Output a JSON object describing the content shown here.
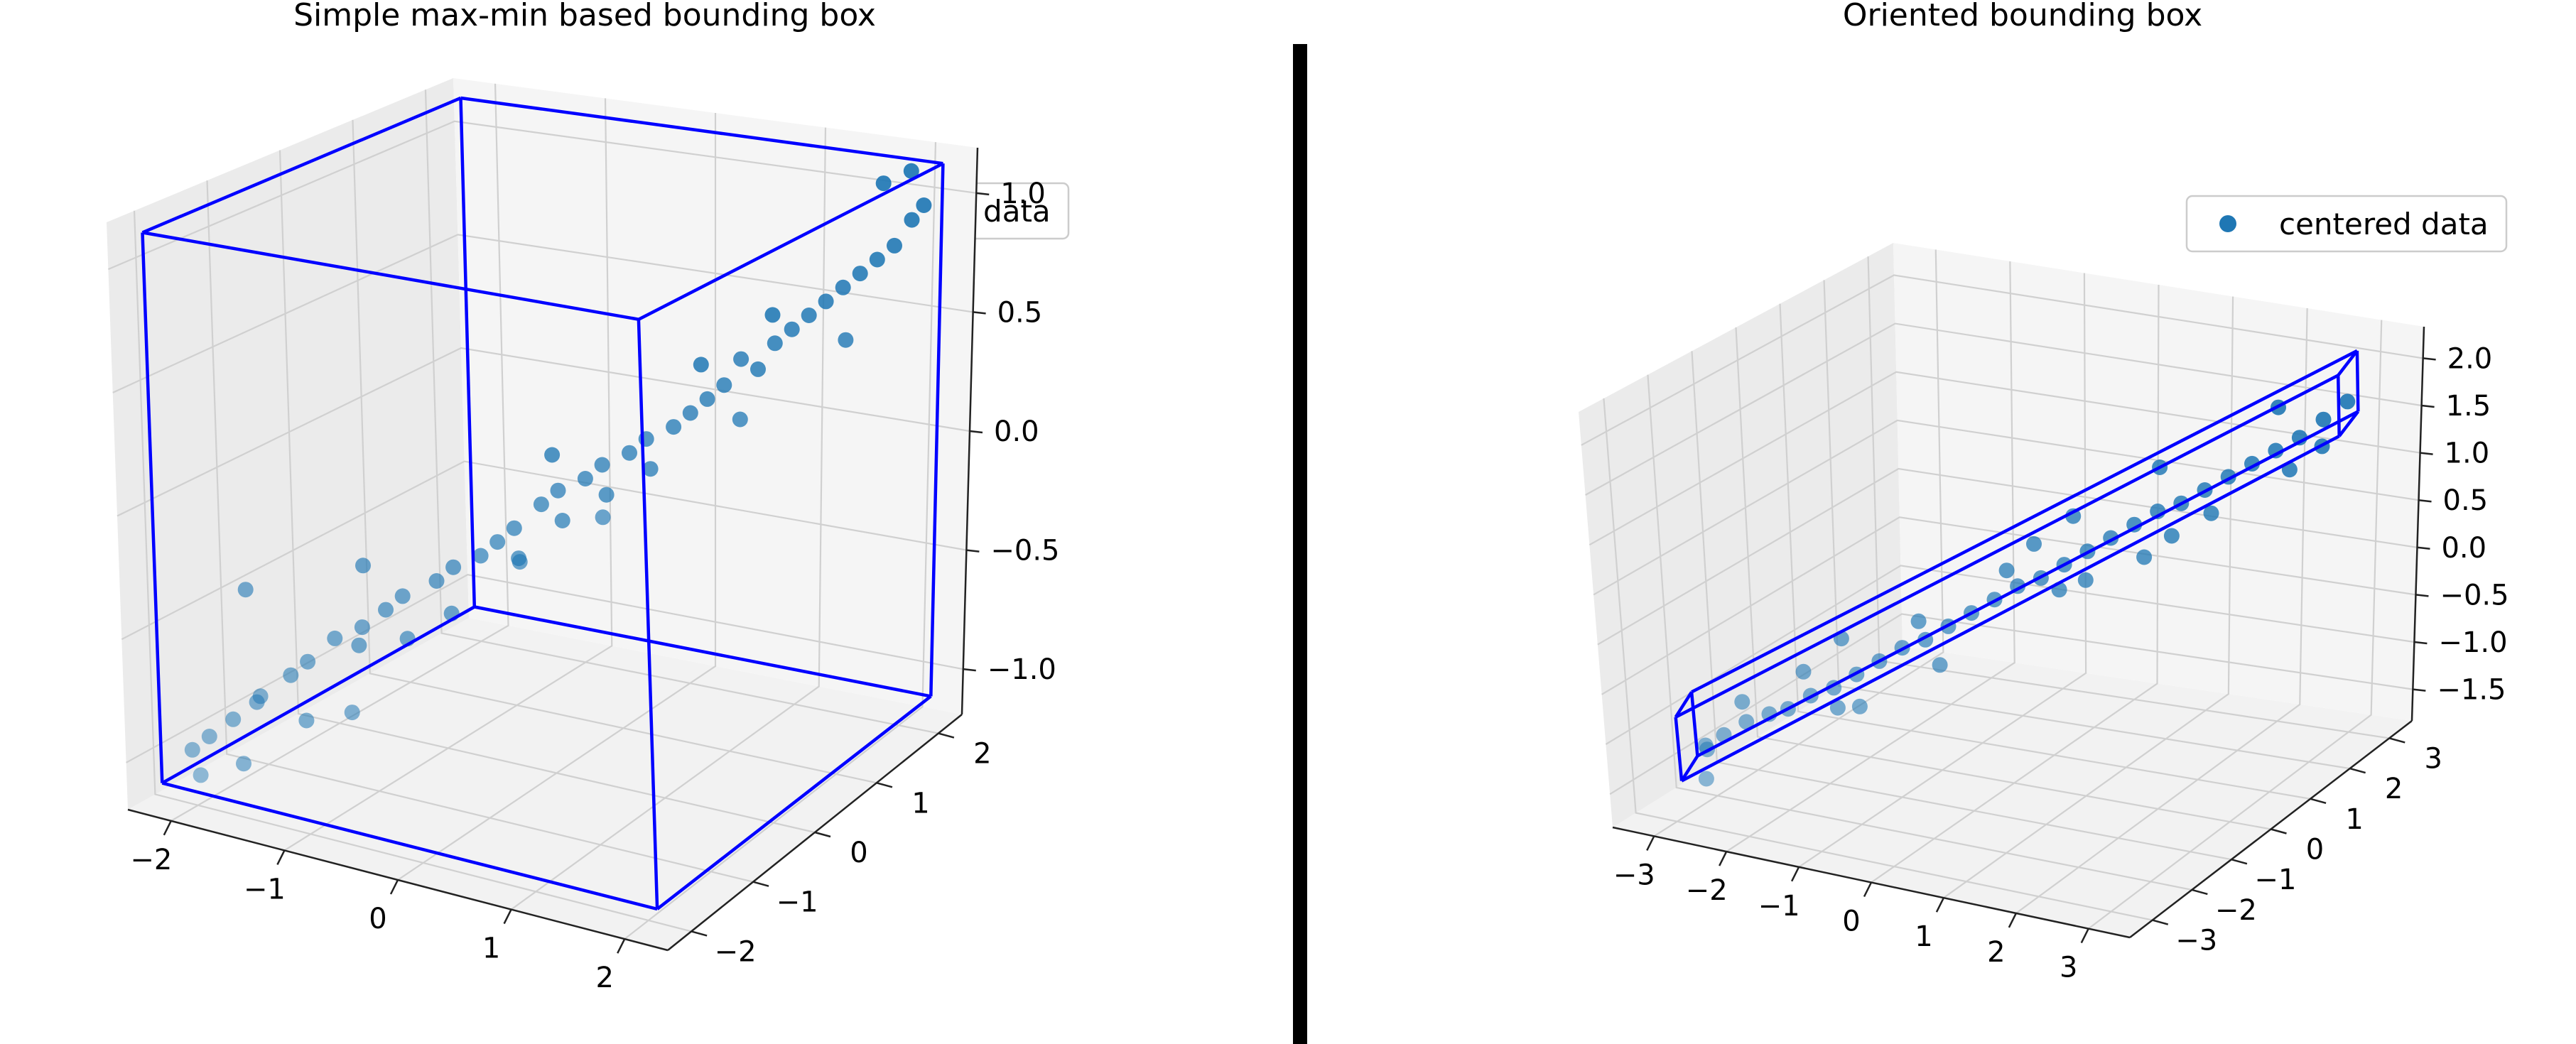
{
  "chart_data": [
    {
      "type": "scatter",
      "title": "Simple max-min based bounding box",
      "projection": "3d",
      "legend": {
        "label": "centered data",
        "position": "top-right"
      },
      "xlim": [
        -2.5,
        2.5
      ],
      "ylim": [
        -2.5,
        2.5
      ],
      "zlim": [
        -1.2,
        1.2
      ],
      "x_ticks": [
        "−2",
        "−1",
        "0",
        "1",
        "2"
      ],
      "y_ticks": [
        "−2",
        "−1",
        "0",
        "1",
        "2"
      ],
      "z_ticks": [
        "−1.0",
        "−0.5",
        "0.0",
        "0.5",
        "1.0"
      ],
      "marker_color": "#1f77b4",
      "box_color": "#0000ff",
      "grid": true,
      "box": {
        "x": [
          -2.3,
          2.3
        ],
        "y": [
          -2.3,
          2.3
        ],
        "z": [
          -1.1,
          1.15
        ]
      },
      "series": [
        {
          "name": "centered data",
          "points": [
            [
              -2.2,
              -2.0,
              -1.0
            ],
            [
              -2.1,
              -1.9,
              -0.95
            ],
            [
              -2.0,
              -1.7,
              -0.9
            ],
            [
              -1.9,
              -1.5,
              -0.85
            ],
            [
              -1.85,
              -1.8,
              -1.05
            ],
            [
              -1.8,
              -1.6,
              -0.8
            ],
            [
              -1.7,
              -1.3,
              -0.75
            ],
            [
              -1.6,
              -1.2,
              -0.7
            ],
            [
              -1.5,
              -1.4,
              -0.9
            ],
            [
              -1.4,
              -1.1,
              -0.6
            ],
            [
              -1.3,
              -0.9,
              -0.65
            ],
            [
              -1.2,
              -1.0,
              -0.55
            ],
            [
              -1.1,
              -0.8,
              -0.5
            ],
            [
              -1.0,
              -0.7,
              -0.45
            ],
            [
              -0.9,
              -0.8,
              -0.6
            ],
            [
              -0.8,
              -0.5,
              -0.4
            ],
            [
              -0.7,
              -0.4,
              -0.35
            ],
            [
              -0.6,
              -0.6,
              -0.5
            ],
            [
              -0.5,
              -0.3,
              -0.3
            ],
            [
              -0.4,
              -0.2,
              -0.25
            ],
            [
              -0.3,
              -0.1,
              -0.2
            ],
            [
              -0.2,
              -0.2,
              -0.3
            ],
            [
              -0.1,
              0.0,
              -0.1
            ],
            [
              0.0,
              0.1,
              -0.05
            ],
            [
              0.1,
              0.0,
              -0.15
            ],
            [
              0.2,
              0.2,
              0.0
            ],
            [
              0.3,
              0.3,
              0.05
            ],
            [
              0.4,
              0.2,
              -0.05
            ],
            [
              0.5,
              0.4,
              0.1
            ],
            [
              0.6,
              0.5,
              0.15
            ],
            [
              0.7,
              0.4,
              0.05
            ],
            [
              0.8,
              0.6,
              0.2
            ],
            [
              0.9,
              0.7,
              0.25
            ],
            [
              1.0,
              0.8,
              0.3
            ],
            [
              1.1,
              0.9,
              0.35
            ],
            [
              1.2,
              1.0,
              0.45
            ],
            [
              1.3,
              1.1,
              0.4
            ],
            [
              1.4,
              1.2,
              0.5
            ],
            [
              1.5,
              1.3,
              0.55
            ],
            [
              1.6,
              1.4,
              0.6
            ],
            [
              1.7,
              1.5,
              0.65
            ],
            [
              1.8,
              1.6,
              0.7
            ],
            [
              1.9,
              1.7,
              0.75
            ],
            [
              2.0,
              1.8,
              0.8
            ],
            [
              2.1,
              1.9,
              0.85
            ],
            [
              2.2,
              2.0,
              0.95
            ],
            [
              2.25,
              2.1,
              1.0
            ],
            [
              -2.3,
              -1.0,
              -0.5
            ],
            [
              -1.5,
              -0.5,
              -0.4
            ],
            [
              0.5,
              1.5,
              0.3
            ],
            [
              1.0,
              1.8,
              0.5
            ],
            [
              2.2,
              1.0,
              0.6
            ],
            [
              1.8,
              2.2,
              1.05
            ],
            [
              -0.5,
              0.8,
              -0.05
            ],
            [
              0.8,
              -0.5,
              0.0
            ],
            [
              -1.0,
              -1.5,
              -0.8
            ],
            [
              1.5,
              0.5,
              0.3
            ],
            [
              2.0,
              2.3,
              1.1
            ],
            [
              -2.0,
              -2.2,
              -1.05
            ],
            [
              0.0,
              -0.5,
              -0.25
            ]
          ]
        }
      ]
    },
    {
      "type": "scatter",
      "title": "Oriented bounding box",
      "projection": "3d",
      "legend": {
        "label": "centered data",
        "position": "top-right"
      },
      "xlim": [
        -3.5,
        3.5
      ],
      "ylim": [
        -3.5,
        3.5
      ],
      "zlim": [
        -1.8,
        2.1
      ],
      "x_ticks": [
        "−3",
        "−2",
        "−1",
        "0",
        "1",
        "2",
        "3"
      ],
      "y_ticks": [
        "−3",
        "−2",
        "−1",
        "0",
        "1",
        "2",
        "3"
      ],
      "z_ticks": [
        "−1.5",
        "−1.0",
        "−0.5",
        "0.0",
        "0.5",
        "1.0",
        "1.5",
        "2.0"
      ],
      "marker_color": "#1f77b4",
      "box_color": "#0000ff",
      "grid": true,
      "box_corners": [
        [
          -2.8,
          -2.6,
          -1.25
        ],
        [
          3.0,
          2.9,
          1.35
        ],
        [
          2.8,
          3.2,
          1.85
        ],
        [
          -3.0,
          -2.3,
          -0.75
        ],
        [
          -3.1,
          -2.5,
          -1.55
        ],
        [
          2.7,
          3.0,
          1.05
        ],
        [
          2.5,
          3.3,
          1.55
        ],
        [
          -3.3,
          -2.2,
          -1.05
        ]
      ],
      "series": [
        {
          "name": "centered data",
          "points": [
            [
              -2.8,
              -2.4,
              -1.2
            ],
            [
              -2.6,
              -2.3,
              -1.1
            ],
            [
              -2.4,
              -2.1,
              -1.0
            ],
            [
              -2.2,
              -1.9,
              -0.95
            ],
            [
              -2.0,
              -1.8,
              -0.9
            ],
            [
              -1.8,
              -1.6,
              -0.8
            ],
            [
              -1.6,
              -1.4,
              -0.75
            ],
            [
              -1.4,
              -1.2,
              -0.65
            ],
            [
              -1.2,
              -1.0,
              -0.55
            ],
            [
              -1.0,
              -0.8,
              -0.45
            ],
            [
              -0.8,
              -0.6,
              -0.4
            ],
            [
              -0.6,
              -0.4,
              -0.3
            ],
            [
              -0.4,
              -0.2,
              -0.2
            ],
            [
              -0.2,
              0.0,
              -0.1
            ],
            [
              0.0,
              0.2,
              0.0
            ],
            [
              0.2,
              0.4,
              0.05
            ],
            [
              0.4,
              0.6,
              0.15
            ],
            [
              0.6,
              0.8,
              0.25
            ],
            [
              0.8,
              1.0,
              0.35
            ],
            [
              1.0,
              1.2,
              0.45
            ],
            [
              1.2,
              1.4,
              0.55
            ],
            [
              1.4,
              1.6,
              0.6
            ],
            [
              1.6,
              1.8,
              0.7
            ],
            [
              1.8,
              2.0,
              0.8
            ],
            [
              2.0,
              2.2,
              0.9
            ],
            [
              2.2,
              2.4,
              1.0
            ],
            [
              2.4,
              2.6,
              1.1
            ],
            [
              2.6,
              2.8,
              1.25
            ],
            [
              2.8,
              3.0,
              1.4
            ],
            [
              -2.9,
              -2.2,
              -1.3
            ],
            [
              -2.5,
              -2.0,
              -0.85
            ],
            [
              -1.5,
              -1.5,
              -0.9
            ],
            [
              -1.0,
              -0.4,
              -0.3
            ],
            [
              0.5,
              0.3,
              0.0
            ],
            [
              0.0,
              0.6,
              0.3
            ],
            [
              1.5,
              1.2,
              0.4
            ],
            [
              1.0,
              1.8,
              0.85
            ],
            [
              2.5,
              2.2,
              0.9
            ],
            [
              2.0,
              2.8,
              1.3
            ],
            [
              -0.5,
              -0.8,
              -0.55
            ],
            [
              -2.0,
              -1.4,
              -0.65
            ],
            [
              0.8,
              0.4,
              0.1
            ],
            [
              1.8,
              1.6,
              0.55
            ],
            [
              -1.2,
              -1.5,
              -0.85
            ],
            [
              -0.2,
              0.3,
              0.1
            ],
            [
              2.7,
              2.6,
              1.05
            ],
            [
              -2.7,
              -2.6,
              -1.45
            ],
            [
              0.3,
              1.0,
              0.5
            ],
            [
              1.3,
              0.9,
              0.25
            ],
            [
              -1.7,
              -1.0,
              -0.4
            ]
          ]
        }
      ]
    }
  ]
}
